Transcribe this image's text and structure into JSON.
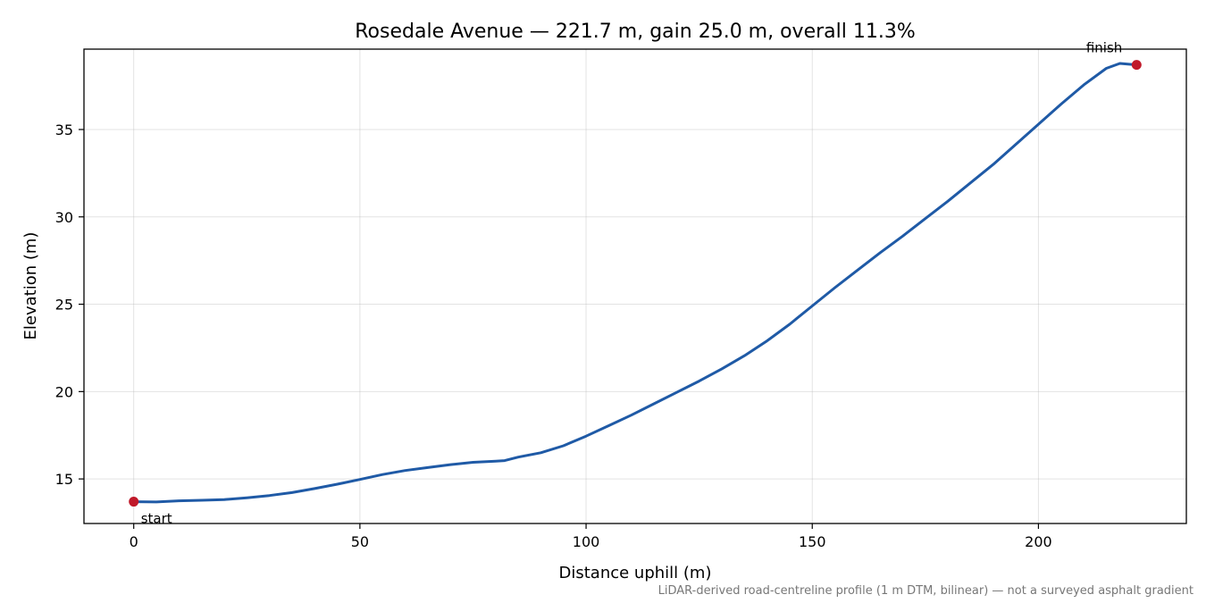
{
  "chart_data": {
    "type": "line",
    "title": "Rosedale Avenue — 221.7 m, gain 25.0 m, overall 11.3%",
    "xlabel": "Distance uphill (m)",
    "ylabel": "Elevation (m)",
    "xlim": [
      -11,
      232.7
    ],
    "ylim": [
      12.45,
      39.6
    ],
    "xticks": [
      0,
      50,
      100,
      150,
      200
    ],
    "yticks": [
      15,
      20,
      25,
      30,
      35
    ],
    "grid": true,
    "footnote": "LiDAR-derived road-centreline profile (1 m DTM, bilinear) — not a surveyed asphalt gradient",
    "series": [
      {
        "color": "#1f5aa6",
        "x": [
          0,
          5,
          10,
          15,
          20,
          25,
          30,
          35,
          40,
          45,
          50,
          55,
          60,
          65,
          70,
          75,
          80,
          82,
          85,
          90,
          95,
          100,
          105,
          110,
          115,
          120,
          125,
          130,
          135,
          140,
          145,
          150,
          155,
          160,
          165,
          170,
          175,
          180,
          185,
          190,
          195,
          200,
          205,
          210,
          215,
          218,
          221.7
        ],
        "values": [
          13.7,
          13.68,
          13.75,
          13.78,
          13.82,
          13.92,
          14.05,
          14.22,
          14.45,
          14.7,
          14.97,
          15.25,
          15.48,
          15.65,
          15.82,
          15.95,
          16.02,
          16.05,
          16.25,
          16.5,
          16.9,
          17.45,
          18.05,
          18.65,
          19.3,
          19.95,
          20.6,
          21.3,
          22.05,
          22.9,
          23.85,
          24.9,
          25.95,
          26.95,
          27.95,
          28.9,
          29.9,
          30.9,
          31.95,
          33.0,
          34.15,
          35.3,
          36.45,
          37.55,
          38.5,
          38.78,
          38.7
        ]
      }
    ],
    "markers": [
      {
        "label": "start",
        "x": 0,
        "y": 13.7,
        "color": "#c0192a"
      },
      {
        "label": "finish",
        "x": 221.7,
        "y": 38.7,
        "color": "#c0192a"
      }
    ]
  }
}
